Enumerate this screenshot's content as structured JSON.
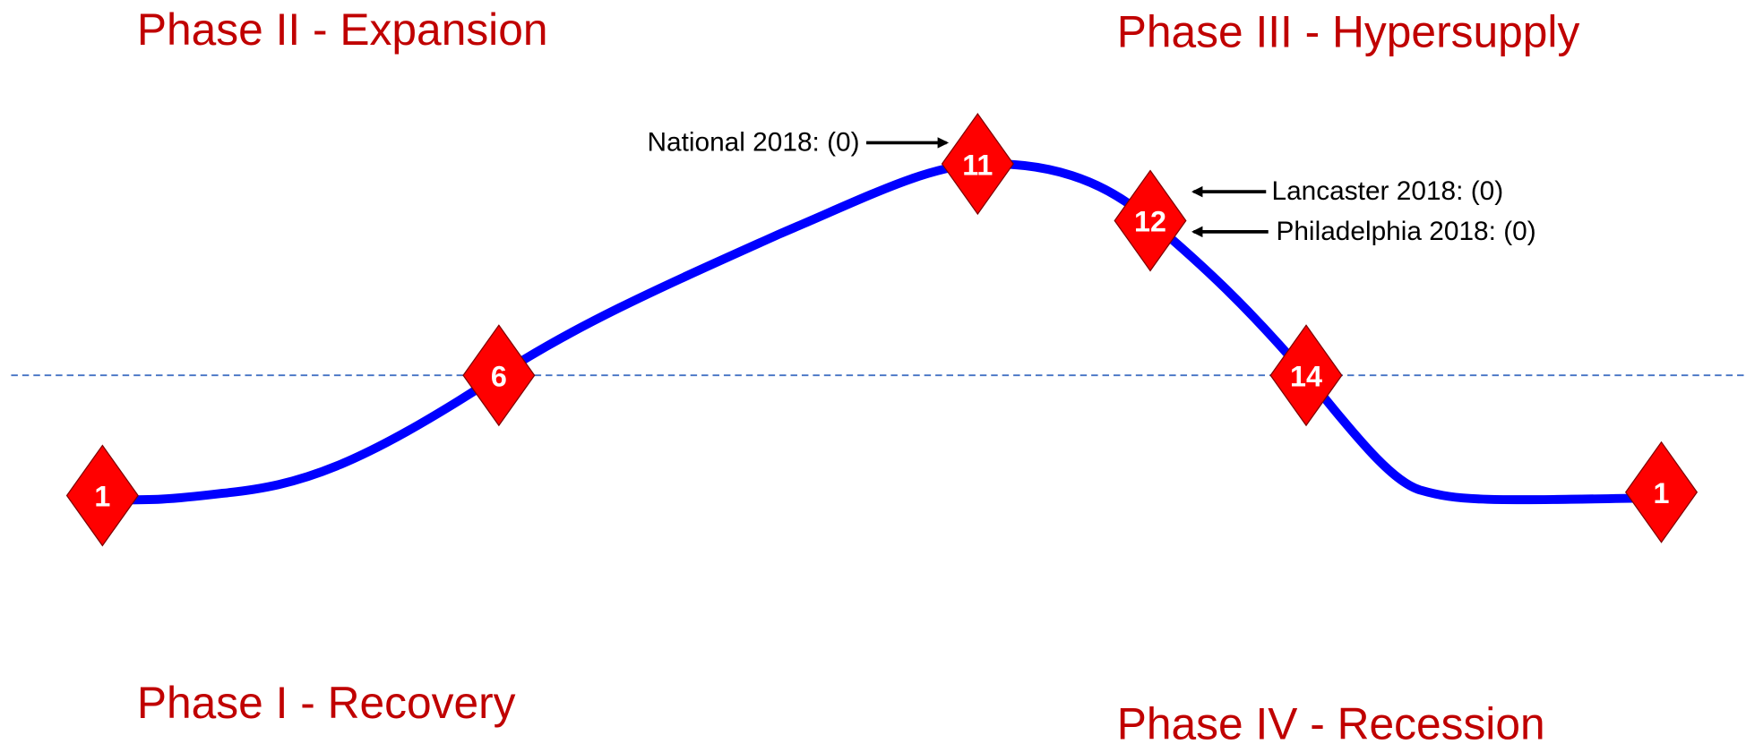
{
  "phases": [
    "Phase II - Expansion",
    "Phase III - Hypersupply",
    "Phase I - Recovery",
    "Phase IV - Recession"
  ],
  "markers": [
    "1",
    "6",
    "11",
    "12",
    "14",
    "1"
  ],
  "annotations": [
    "National 2018: (0)",
    "Lancaster 2018: (0)",
    "Philadelphia 2018: (0)"
  ]
}
